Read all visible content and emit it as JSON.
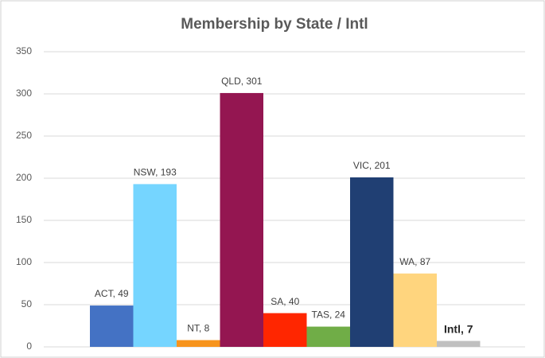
{
  "chart_data": {
    "type": "bar",
    "title": "Membership by State / Intl",
    "values": [
      49,
      193,
      8,
      301,
      40,
      24,
      201,
      87,
      7
    ],
    "value_labels": [
      "ACT, 49",
      "NSW, 193",
      "NT, 8",
      "QLD, 301",
      "SA, 40",
      "TAS, 24",
      "VIC, 201",
      "WA, 87",
      "Intl, 7"
    ],
    "colors": [
      "#4472c4",
      "#75d5ff",
      "#f7941d",
      "#941651",
      "#ff2600",
      "#70ad47",
      "#203f73",
      "#ffd57e",
      "#c0c0c0"
    ],
    "ylim": [
      0,
      350
    ],
    "yticks": [
      0,
      50,
      100,
      150,
      200,
      250,
      300,
      350
    ],
    "grid": true
  }
}
